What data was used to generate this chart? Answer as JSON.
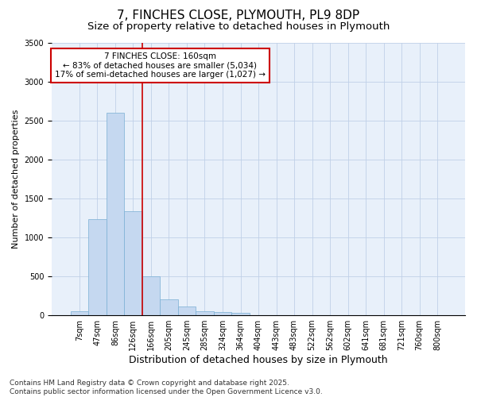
{
  "title": "7, FINCHES CLOSE, PLYMOUTH, PL9 8DP",
  "subtitle": "Size of property relative to detached houses in Plymouth",
  "xlabel": "Distribution of detached houses by size in Plymouth",
  "ylabel": "Number of detached properties",
  "categories": [
    "7sqm",
    "47sqm",
    "86sqm",
    "126sqm",
    "166sqm",
    "205sqm",
    "245sqm",
    "285sqm",
    "324sqm",
    "364sqm",
    "404sqm",
    "443sqm",
    "483sqm",
    "522sqm",
    "562sqm",
    "602sqm",
    "641sqm",
    "681sqm",
    "721sqm",
    "760sqm",
    "800sqm"
  ],
  "values": [
    50,
    1240,
    2600,
    1340,
    500,
    200,
    110,
    50,
    40,
    30,
    0,
    0,
    0,
    0,
    0,
    0,
    0,
    0,
    0,
    0,
    0
  ],
  "bar_color": "#c5d8f0",
  "bar_edgecolor": "#7aafd4",
  "vline_color": "#cc0000",
  "vline_x_index": 3.5,
  "annotation_text": "7 FINCHES CLOSE: 160sqm\n← 83% of detached houses are smaller (5,034)\n17% of semi-detached houses are larger (1,027) →",
  "annotation_box_edgecolor": "#cc0000",
  "annotation_box_facecolor": "#ffffff",
  "ylim": [
    0,
    3500
  ],
  "background_color": "#e8f0fa",
  "footer_text": "Contains HM Land Registry data © Crown copyright and database right 2025.\nContains public sector information licensed under the Open Government Licence v3.0.",
  "title_fontsize": 11,
  "subtitle_fontsize": 9.5,
  "xlabel_fontsize": 9,
  "ylabel_fontsize": 8,
  "tick_fontsize": 7,
  "annotation_fontsize": 7.5,
  "footer_fontsize": 6.5
}
